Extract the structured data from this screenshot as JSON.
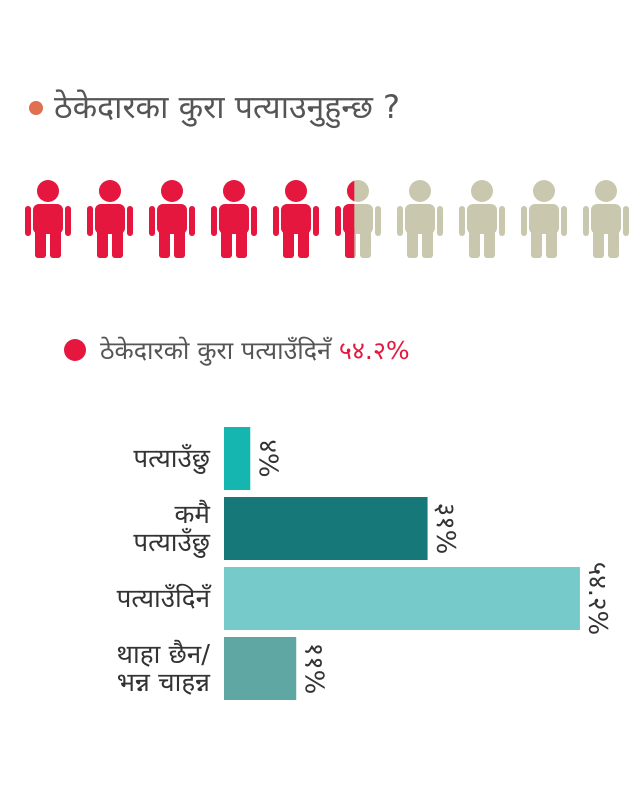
{
  "header": {
    "title": "ठेकेदारका कुरा पत्याउनुहुन्छ ?"
  },
  "icon_chart": {
    "label": "ठेकेदारको कुरा पत्याउँदिनँ",
    "value": 54.2,
    "value_label": "५४.२%",
    "color": "#e5173f",
    "rest_color": "#c9c8ae"
  },
  "chart_data": {
    "type": "bar",
    "orientation": "horizontal",
    "categories": [
      "पत्याउँछु",
      "कमै\nपत्याउँछु",
      "पत्याउँदिनँ",
      "थाहा छैन/\nभन्न चाहन्न"
    ],
    "values": [
      4,
      31,
      54.2,
      11
    ],
    "value_labels": [
      "४%",
      "३१%",
      "५४.२%",
      "११%"
    ],
    "colors": [
      "#15b5b0",
      "#17787a",
      "#76cac9",
      "#5fa7a3"
    ],
    "xlim": [
      0,
      60
    ]
  }
}
